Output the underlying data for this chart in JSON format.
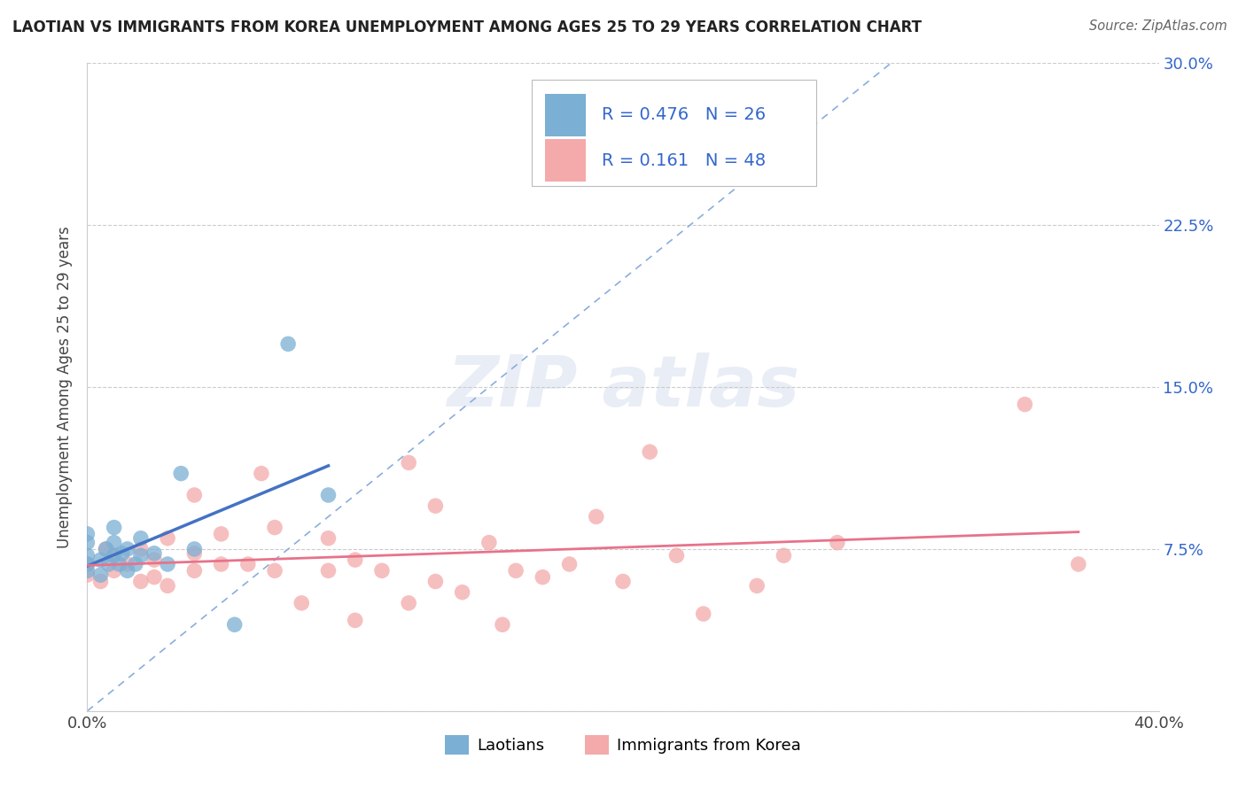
{
  "title": "LAOTIAN VS IMMIGRANTS FROM KOREA UNEMPLOYMENT AMONG AGES 25 TO 29 YEARS CORRELATION CHART",
  "source": "Source: ZipAtlas.com",
  "ylabel": "Unemployment Among Ages 25 to 29 years",
  "xlim": [
    0.0,
    0.4
  ],
  "ylim": [
    0.0,
    0.3
  ],
  "xticks": [
    0.0,
    0.1,
    0.2,
    0.3,
    0.4
  ],
  "xticklabels": [
    "0.0%",
    "",
    "",
    "",
    "40.0%"
  ],
  "yticks": [
    0.0,
    0.075,
    0.15,
    0.225,
    0.3
  ],
  "right_yticklabels": [
    "",
    "7.5%",
    "15.0%",
    "22.5%",
    "30.0%"
  ],
  "laotian_R": 0.476,
  "laotian_N": 26,
  "korea_R": 0.161,
  "korea_N": 48,
  "laotian_color": "#7BAFD4",
  "korea_color": "#F4AAAA",
  "laotian_line_color": "#4472C4",
  "korea_line_color": "#E8728A",
  "diagonal_color": "#8AAEDC",
  "laotian_x": [
    0.0,
    0.0,
    0.0,
    0.0,
    0.0,
    0.005,
    0.005,
    0.007,
    0.008,
    0.01,
    0.01,
    0.01,
    0.012,
    0.013,
    0.015,
    0.015,
    0.018,
    0.02,
    0.02,
    0.025,
    0.03,
    0.035,
    0.04,
    0.055,
    0.075,
    0.09
  ],
  "laotian_y": [
    0.065,
    0.068,
    0.072,
    0.078,
    0.082,
    0.063,
    0.07,
    0.075,
    0.068,
    0.072,
    0.078,
    0.085,
    0.068,
    0.073,
    0.065,
    0.075,
    0.068,
    0.072,
    0.08,
    0.073,
    0.068,
    0.11,
    0.075,
    0.04,
    0.17,
    0.1
  ],
  "korea_x": [
    0.0,
    0.0,
    0.005,
    0.007,
    0.01,
    0.01,
    0.015,
    0.02,
    0.02,
    0.025,
    0.025,
    0.03,
    0.03,
    0.04,
    0.04,
    0.04,
    0.05,
    0.05,
    0.06,
    0.065,
    0.07,
    0.07,
    0.08,
    0.09,
    0.09,
    0.1,
    0.1,
    0.11,
    0.12,
    0.12,
    0.13,
    0.13,
    0.14,
    0.15,
    0.155,
    0.16,
    0.17,
    0.18,
    0.19,
    0.2,
    0.21,
    0.22,
    0.23,
    0.25,
    0.26,
    0.28,
    0.35,
    0.37
  ],
  "korea_y": [
    0.063,
    0.068,
    0.06,
    0.075,
    0.065,
    0.072,
    0.068,
    0.06,
    0.075,
    0.062,
    0.07,
    0.058,
    0.08,
    0.065,
    0.073,
    0.1,
    0.068,
    0.082,
    0.068,
    0.11,
    0.065,
    0.085,
    0.05,
    0.065,
    0.08,
    0.042,
    0.07,
    0.065,
    0.05,
    0.115,
    0.06,
    0.095,
    0.055,
    0.078,
    0.04,
    0.065,
    0.062,
    0.068,
    0.09,
    0.06,
    0.12,
    0.072,
    0.045,
    0.058,
    0.072,
    0.078,
    0.142,
    0.068
  ]
}
